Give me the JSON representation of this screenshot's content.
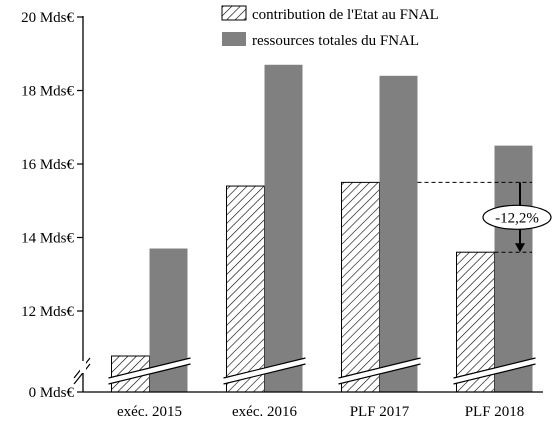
{
  "chart_data": {
    "type": "bar",
    "categories": [
      "exéc. 2015",
      "exéc. 2016",
      "PLF 2017",
      "PLF 2018"
    ],
    "series": [
      {
        "name": "contribution de l'Etat au FNAL",
        "values": [
          0.9,
          15.4,
          15.5,
          13.6
        ],
        "pattern": "hatched"
      },
      {
        "name": "ressources totales du FNAL",
        "values": [
          13.7,
          18.7,
          18.4,
          16.5
        ],
        "color": "#808080"
      }
    ],
    "yticks": [
      {
        "value": 0,
        "label": "0 Mds€"
      },
      {
        "value": 12,
        "label": "12 Mds€"
      },
      {
        "value": 14,
        "label": "14 Mds€"
      },
      {
        "value": 16,
        "label": "16 Mds€"
      },
      {
        "value": 18,
        "label": "18 Mds€"
      },
      {
        "value": 20,
        "label": "20 Mds€"
      }
    ],
    "axis_break": true,
    "legend_position": "top-right",
    "annotation": {
      "label": "-12,2%",
      "from_value": 15.5,
      "to_value": 13.6,
      "from_category": "PLF 2017",
      "to_category": "PLF 2018"
    }
  }
}
